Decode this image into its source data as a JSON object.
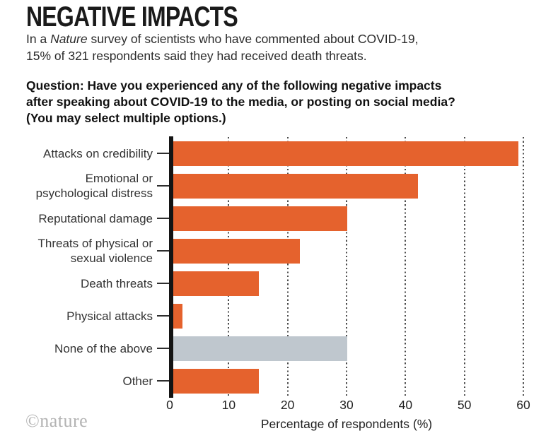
{
  "header": {
    "title": "NEGATIVE IMPACTS",
    "subtitle": {
      "line1_pre": "In a ",
      "line1_italic": "Nature",
      "line1_post": " survey of scientists who have commented about COVID-19,",
      "line2": "15% of 321 respondents said they had received death threats."
    },
    "question_lines": [
      "Question: Have you experienced any of the following negative impacts",
      "after speaking about COVID-19 to the media, or posting on social media?",
      "(You may select multiple options.)"
    ]
  },
  "chart_data": {
    "type": "bar",
    "orientation": "horizontal",
    "categories": [
      "Attacks on credibility",
      "Emotional or\npsychological distress",
      "Reputational damage",
      "Threats of physical or\nsexual violence",
      "Death threats",
      "Physical attacks",
      "None of the above",
      "Other"
    ],
    "values": [
      59,
      42,
      30,
      22,
      15,
      2,
      30,
      15
    ],
    "bar_colors": [
      "#e5622d",
      "#e5622d",
      "#e5622d",
      "#e5622d",
      "#e5622d",
      "#e5622d",
      "#bfc7ce",
      "#e5622d"
    ],
    "xlabel": "Percentage of respondents (%)",
    "xticks": [
      0,
      10,
      20,
      30,
      40,
      50,
      60
    ],
    "xlim": [
      0,
      63
    ],
    "grid": "vertical-dotted",
    "unit": "%",
    "legend": null
  },
  "footer": {
    "watermark": "©nature"
  },
  "colors": {
    "accent_orange": "#e5622d",
    "muted_gray_bar": "#bfc7ce",
    "axis_black": "#141414",
    "gridline_gray": "#4d4d4d",
    "text_dark": "#222222",
    "watermark_gray": "#b3b3b3"
  }
}
